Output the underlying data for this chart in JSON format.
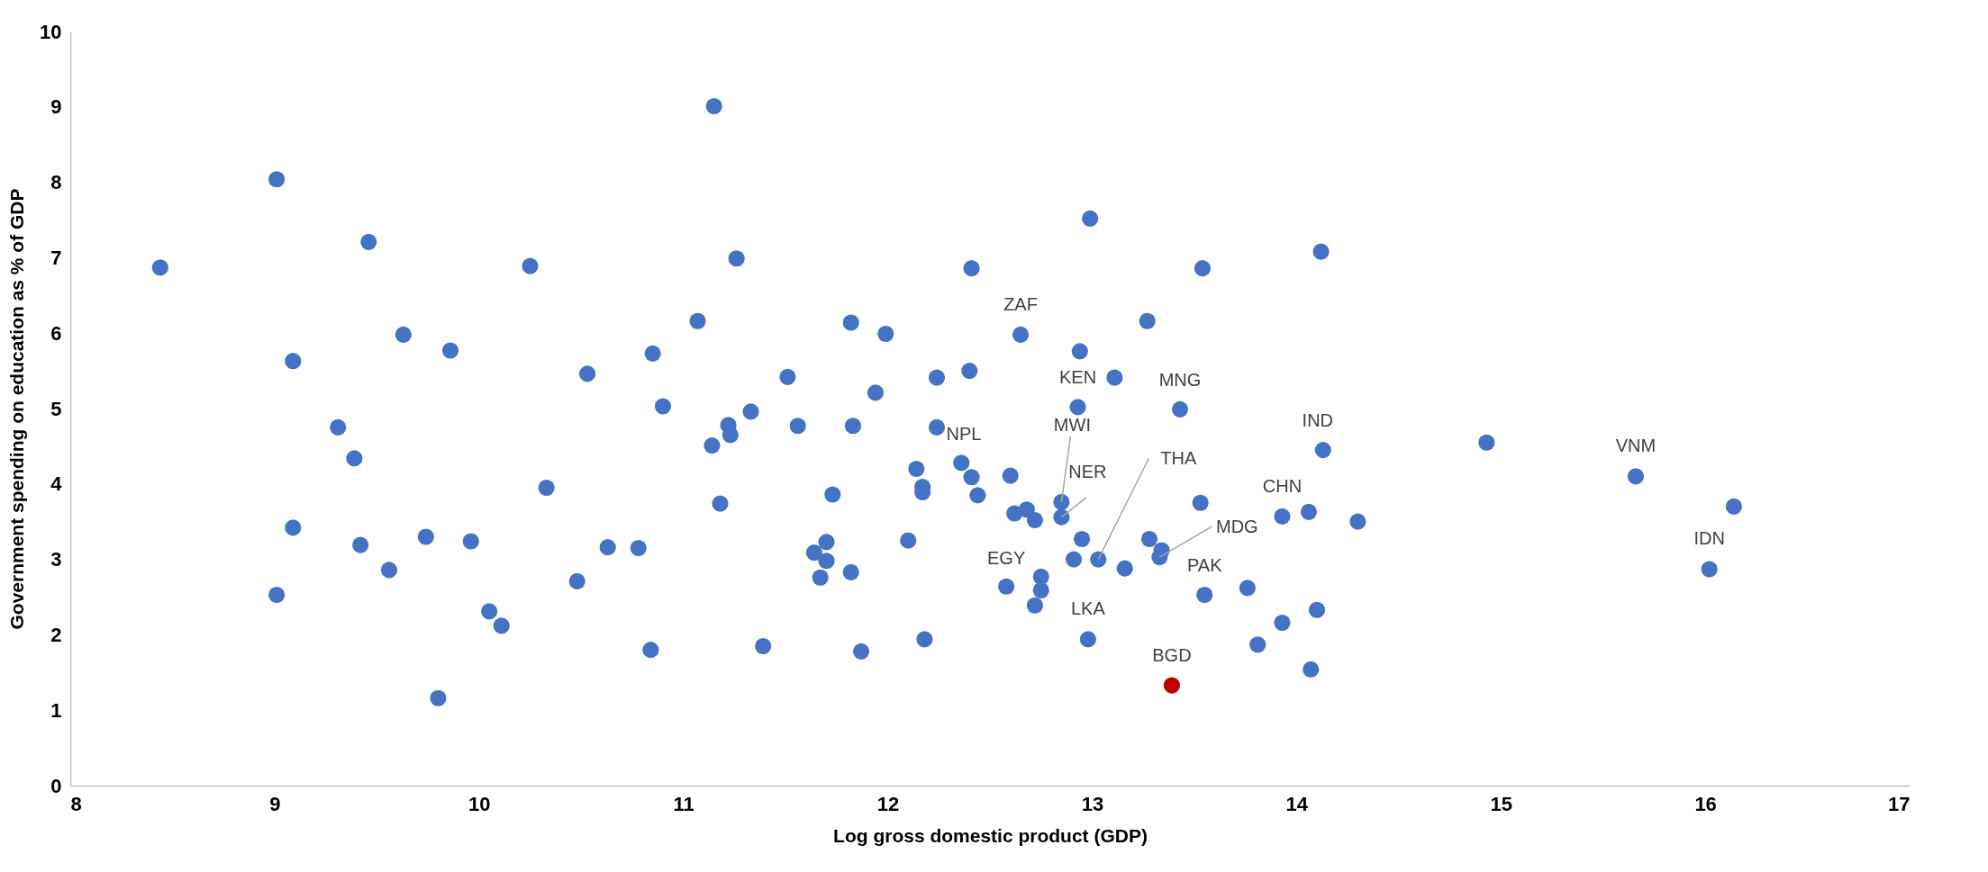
{
  "chart_data": {
    "type": "scatter",
    "xlabel": "Log gross domestic product (GDP)",
    "ylabel": "Government spending on education as % of GDP",
    "xlim": [
      8,
      17
    ],
    "ylim": [
      0,
      10
    ],
    "xticks": [
      8,
      9,
      10,
      11,
      12,
      13,
      14,
      15,
      16,
      17
    ],
    "yticks": [
      0,
      1,
      2,
      3,
      4,
      5,
      6,
      7,
      8,
      9,
      10
    ],
    "grid": false,
    "marker": "circle",
    "series": [
      {
        "color": "#4472c4",
        "x": [
          8.44,
          9.01,
          9.46,
          10.25,
          9.63,
          9.86,
          9.09,
          10.53,
          10.85,
          10.9,
          11.07,
          11.15,
          12.99,
          14.12,
          11.26,
          12.41,
          13.54,
          11.82,
          11.99,
          12.65,
          13.27,
          12.94,
          11.51,
          11.94,
          12.24,
          12.4,
          13.11,
          12.93,
          13.43,
          11.33,
          9.31,
          9.39,
          10.33,
          9.09,
          9.42,
          9.74,
          9.96,
          9.56,
          9.01,
          10.05,
          10.11,
          10.48,
          10.63,
          10.78,
          10.84,
          9.8,
          11.22,
          11.23,
          11.14,
          11.56,
          11.83,
          12.24,
          14.13,
          12.14,
          12.36,
          12.41,
          12.6,
          12.17,
          12.17,
          12.44,
          11.18,
          11.73,
          12.62,
          12.68,
          12.72,
          12.85,
          12.85,
          13.53,
          13.93,
          14.06,
          12.1,
          11.7,
          11.64,
          11.7,
          11.67,
          11.82,
          12.95,
          12.91,
          13.03,
          13.16,
          13.28,
          13.34,
          13.33,
          12.58,
          12.75,
          12.75,
          12.72,
          13.55,
          13.76,
          14.1,
          13.93,
          13.81,
          14.07,
          12.98,
          12.18,
          11.39,
          11.87,
          14.93,
          15.66,
          16.14,
          16.02,
          14.3
        ],
        "values": [
          6.87,
          8.04,
          7.21,
          6.89,
          5.98,
          5.77,
          5.63,
          5.46,
          5.73,
          5.03,
          6.16,
          9.01,
          7.52,
          7.08,
          6.99,
          6.86,
          6.86,
          6.14,
          5.99,
          5.98,
          6.16,
          5.76,
          5.42,
          5.21,
          5.41,
          5.5,
          5.41,
          5.02,
          4.99,
          4.96,
          4.75,
          4.34,
          3.95,
          3.42,
          3.19,
          3.3,
          3.24,
          2.86,
          2.53,
          2.31,
          2.12,
          2.71,
          3.16,
          3.15,
          1.8,
          1.16,
          4.78,
          4.65,
          4.51,
          4.77,
          4.77,
          4.75,
          4.45,
          4.2,
          4.28,
          4.09,
          4.11,
          3.96,
          3.89,
          3.85,
          3.74,
          3.86,
          3.61,
          3.66,
          3.52,
          3.76,
          3.56,
          3.75,
          3.57,
          3.63,
          3.25,
          3.23,
          3.09,
          2.98,
          2.76,
          2.83,
          3.27,
          3.0,
          3.0,
          2.88,
          3.27,
          3.12,
          3.03,
          2.64,
          2.77,
          2.59,
          2.39,
          2.53,
          2.62,
          2.33,
          2.16,
          1.87,
          1.54,
          1.94,
          1.94,
          1.85,
          1.78,
          4.55,
          4.1,
          3.7,
          2.87,
          3.5
        ]
      },
      {
        "color": "#c00000",
        "x": [
          13.39
        ],
        "values": [
          1.33
        ]
      }
    ],
    "annotations": [
      {
        "text": "ZAF",
        "x": 12.65,
        "y": 5.98
      },
      {
        "text": "KEN",
        "x": 12.93,
        "y": 5.02
      },
      {
        "text": "MNG",
        "x": 13.43,
        "y": 4.99
      },
      {
        "text": "IND",
        "x": 14.13,
        "y": 4.45
      },
      {
        "text": "NPL",
        "x": 12.24,
        "y": 4.75
      },
      {
        "text": "MWI",
        "x": 12.85,
        "y": 3.76
      },
      {
        "text": "NER",
        "x": 12.85,
        "y": 3.56
      },
      {
        "text": "THA",
        "x": 13.03,
        "y": 3.0
      },
      {
        "text": "CHN",
        "x": 13.93,
        "y": 3.57
      },
      {
        "text": "MDG",
        "x": 13.33,
        "y": 3.03
      },
      {
        "text": "EGY",
        "x": 12.58,
        "y": 2.64
      },
      {
        "text": "PAK",
        "x": 13.55,
        "y": 2.53
      },
      {
        "text": "LKA",
        "x": 12.98,
        "y": 1.94
      },
      {
        "text": "BGD",
        "x": 13.39,
        "y": 1.33
      },
      {
        "text": "VNM",
        "x": 15.66,
        "y": 4.1
      },
      {
        "text": "IDN",
        "x": 16.02,
        "y": 2.87
      }
    ]
  }
}
